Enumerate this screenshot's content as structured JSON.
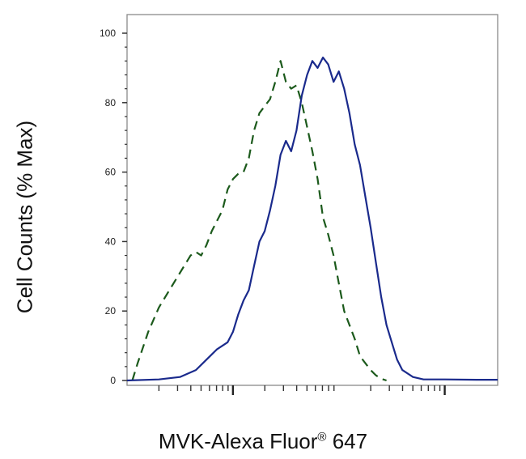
{
  "chart_data": {
    "type": "line",
    "title": "",
    "ylabel": "Cell Counts (% Max)",
    "xlabel": {
      "prefix": "MVK-Alexa Fluor",
      "mark": "®",
      "suffix": " 647"
    },
    "ylim": [
      0,
      100
    ],
    "yticks": [
      "0",
      "20",
      "40",
      "60",
      "80",
      "100"
    ],
    "x_scale": "log",
    "x_decades": [
      1,
      2,
      3
    ],
    "x_major_ticks": [
      100,
      10000
    ],
    "grid": false,
    "series": [
      {
        "style": "dashed",
        "color": "#1c5a1c",
        "points": [
          [
            1.05,
            0
          ],
          [
            1.1,
            5
          ],
          [
            1.2,
            14
          ],
          [
            1.3,
            21
          ],
          [
            1.4,
            26
          ],
          [
            1.5,
            31
          ],
          [
            1.6,
            36
          ],
          [
            1.65,
            37
          ],
          [
            1.7,
            36
          ],
          [
            1.75,
            39
          ],
          [
            1.8,
            43
          ],
          [
            1.9,
            49
          ],
          [
            1.95,
            55
          ],
          [
            2.0,
            58
          ],
          [
            2.05,
            59.5
          ],
          [
            2.1,
            60
          ],
          [
            2.15,
            64
          ],
          [
            2.2,
            72
          ],
          [
            2.25,
            77
          ],
          [
            2.3,
            79
          ],
          [
            2.35,
            81
          ],
          [
            2.4,
            86
          ],
          [
            2.45,
            92
          ],
          [
            2.5,
            86
          ],
          [
            2.55,
            84
          ],
          [
            2.6,
            85
          ],
          [
            2.65,
            80
          ],
          [
            2.7,
            73
          ],
          [
            2.75,
            66
          ],
          [
            2.8,
            58
          ],
          [
            2.85,
            47
          ],
          [
            2.9,
            42
          ],
          [
            2.95,
            36
          ],
          [
            3.0,
            28
          ],
          [
            3.05,
            20
          ],
          [
            3.1,
            16
          ],
          [
            3.15,
            12
          ],
          [
            3.2,
            7
          ],
          [
            3.25,
            5
          ],
          [
            3.3,
            3
          ],
          [
            3.35,
            1.5
          ],
          [
            3.4,
            0.5
          ],
          [
            3.45,
            0
          ]
        ]
      },
      {
        "style": "solid",
        "color": "#1a2a8c",
        "points": [
          [
            1.0,
            0
          ],
          [
            1.3,
            0.3
          ],
          [
            1.5,
            1
          ],
          [
            1.65,
            3
          ],
          [
            1.75,
            6
          ],
          [
            1.85,
            9
          ],
          [
            1.95,
            11
          ],
          [
            2.0,
            14
          ],
          [
            2.05,
            19
          ],
          [
            2.1,
            23
          ],
          [
            2.15,
            26
          ],
          [
            2.2,
            33
          ],
          [
            2.25,
            40
          ],
          [
            2.3,
            43
          ],
          [
            2.35,
            49
          ],
          [
            2.4,
            56
          ],
          [
            2.45,
            65
          ],
          [
            2.5,
            69
          ],
          [
            2.55,
            66
          ],
          [
            2.6,
            72
          ],
          [
            2.65,
            82
          ],
          [
            2.7,
            88
          ],
          [
            2.75,
            92
          ],
          [
            2.8,
            90
          ],
          [
            2.85,
            93
          ],
          [
            2.9,
            91
          ],
          [
            2.95,
            86
          ],
          [
            3.0,
            89
          ],
          [
            3.05,
            84
          ],
          [
            3.1,
            77
          ],
          [
            3.15,
            68
          ],
          [
            3.2,
            62
          ],
          [
            3.25,
            53
          ],
          [
            3.3,
            44
          ],
          [
            3.35,
            34
          ],
          [
            3.4,
            24
          ],
          [
            3.45,
            16
          ],
          [
            3.5,
            11
          ],
          [
            3.55,
            6
          ],
          [
            3.6,
            3
          ],
          [
            3.7,
            1
          ],
          [
            3.8,
            0.3
          ],
          [
            4.0,
            0.3
          ],
          [
            4.3,
            0.2
          ],
          [
            4.5,
            0.2
          ]
        ]
      }
    ]
  }
}
